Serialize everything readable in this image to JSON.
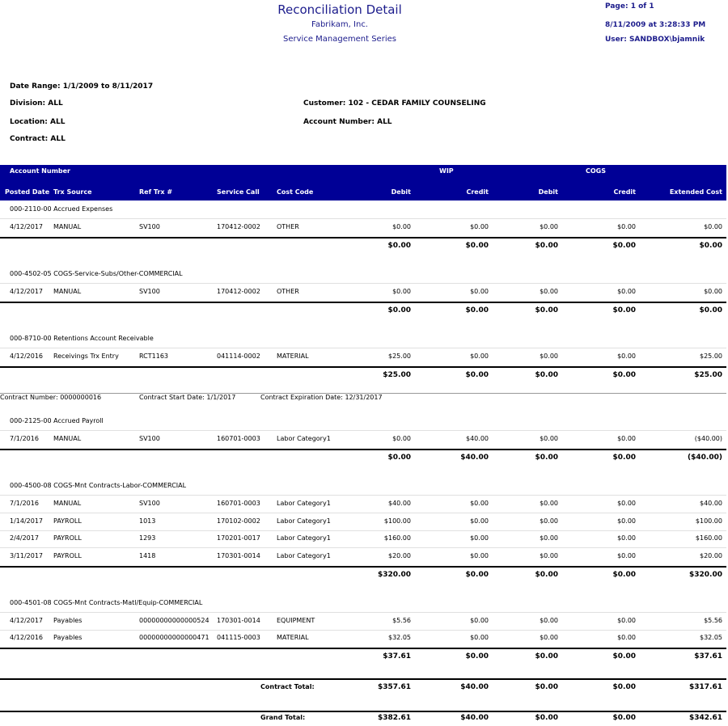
{
  "header": {
    "title": "Reconciliation Detail",
    "company": "Fabrikam, Inc.",
    "series": "Service Management Series",
    "page": "Page: 1 of 1",
    "printed": "8/11/2009 at 3:28:33 PM",
    "user": "User: SANDBOX\\bjamnik"
  },
  "filters": {
    "date_range": "Date Range: 1/1/2009 to 8/11/2017",
    "division": "Division: ALL",
    "location": "Location: ALL",
    "contract": "Contract: ALL",
    "customer": "Customer: 102 - CEDAR FAMILY COUNSELING",
    "account": "Account Number: ALL"
  },
  "table": {
    "header_top": [
      "Account Number",
      "WIP",
      "COGS"
    ],
    "columns": [
      "Posted Date",
      "Trx Source",
      "Ref Trx #",
      "Service Call",
      "Cost Code",
      "Debit",
      "Credit",
      "Debit",
      "Credit",
      "Extended Cost"
    ],
    "sections": [
      {
        "groups": [
          {
            "account": "000-2110-00 Accrued Expenses",
            "rows": [
              [
                "4/12/2017",
                "MANUAL",
                "SV100",
                "170412-0002",
                "OTHER",
                "$0.00",
                "$0.00",
                "$0.00",
                "$0.00",
                "$0.00"
              ]
            ],
            "totals": [
              "$0.00",
              "$0.00",
              "$0.00",
              "$0.00",
              "$0.00"
            ]
          },
          {
            "account": "000-4502-05 COGS-Service-Subs/Other-COMMERCIAL",
            "rows": [
              [
                "4/12/2017",
                "MANUAL",
                "SV100",
                "170412-0002",
                "OTHER",
                "$0.00",
                "$0.00",
                "$0.00",
                "$0.00",
                "$0.00"
              ]
            ],
            "totals": [
              "$0.00",
              "$0.00",
              "$0.00",
              "$0.00",
              "$0.00"
            ]
          },
          {
            "account": "000-8710-00 Retentions Account Receivable",
            "rows": [
              [
                "4/12/2016",
                "Receivings Trx Entry",
                "RCT1163",
                "041114-0002",
                "MATERIAL",
                "$25.00",
                "$0.00",
                "$0.00",
                "$0.00",
                "$25.00"
              ]
            ],
            "totals": [
              "$25.00",
              "$0.00",
              "$0.00",
              "$0.00",
              "$25.00"
            ]
          }
        ]
      },
      {
        "contract": [
          "Contract Number:   0000000016",
          "Contract Start Date: 1/1/2017",
          "Contract Expiration Date: 12/31/2017"
        ],
        "groups": [
          {
            "account": "000-2125-00 Accrued Payroll",
            "rows": [
              [
                "7/1/2016",
                "MANUAL",
                "SV100",
                "160701-0003",
                "Labor Category1",
                "$0.00",
                "$40.00",
                "$0.00",
                "$0.00",
                "($40.00)"
              ]
            ],
            "totals": [
              "$0.00",
              "$40.00",
              "$0.00",
              "$0.00",
              "($40.00)"
            ]
          },
          {
            "account": "000-4500-08 COGS-Mnt Contracts-Labor-COMMERCIAL",
            "rows": [
              [
                "7/1/2016",
                "MANUAL",
                "SV100",
                "160701-0003",
                "Labor Category1",
                "$40.00",
                "$0.00",
                "$0.00",
                "$0.00",
                "$40.00"
              ],
              [
                "1/14/2017",
                "PAYROLL",
                "1013",
                "170102-0002",
                "Labor Category1",
                "$100.00",
                "$0.00",
                "$0.00",
                "$0.00",
                "$100.00"
              ],
              [
                "2/4/2017",
                "PAYROLL",
                "1293",
                "170201-0017",
                "Labor Category1",
                "$160.00",
                "$0.00",
                "$0.00",
                "$0.00",
                "$160.00"
              ],
              [
                "3/11/2017",
                "PAYROLL",
                "1418",
                "170301-0014",
                "Labor Category1",
                "$20.00",
                "$0.00",
                "$0.00",
                "$0.00",
                "$20.00"
              ]
            ],
            "totals": [
              "$320.00",
              "$0.00",
              "$0.00",
              "$0.00",
              "$320.00"
            ]
          },
          {
            "account": "000-4501-08 COGS-Mnt Contracts-Matl/Equip-COMMERCIAL",
            "rows": [
              [
                "4/12/2017",
                "Payables",
                "00000000000000524",
                "170301-0014",
                "EQUIPMENT",
                "$5.56",
                "$0.00",
                "$0.00",
                "$0.00",
                "$5.56"
              ],
              [
                "4/12/2016",
                "Payables",
                "00000000000000471",
                "041115-0003",
                "MATERIAL",
                "$32.05",
                "$0.00",
                "$0.00",
                "$0.00",
                "$32.05"
              ]
            ],
            "totals": [
              "$37.61",
              "$0.00",
              "$0.00",
              "$0.00",
              "$37.61"
            ]
          }
        ],
        "total_label": "Contract Total:",
        "totals": [
          "$357.61",
          "$40.00",
          "$0.00",
          "$0.00",
          "$317.61"
        ]
      }
    ],
    "grand": {
      "label": "Grand Total:",
      "totals": [
        "$382.61",
        "$40.00",
        "$0.00",
        "$0.00",
        "$342.61"
      ]
    }
  }
}
